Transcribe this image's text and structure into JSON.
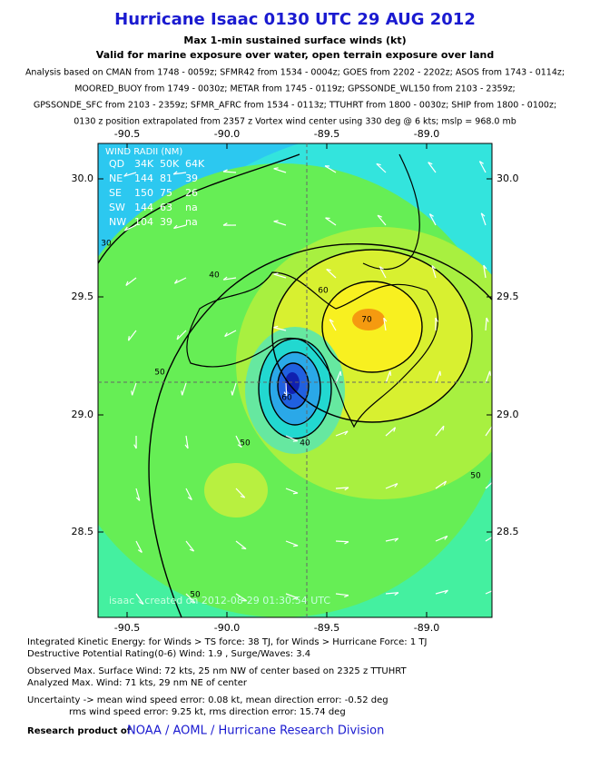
{
  "header": {
    "title": "Hurricane Isaac 0130 UTC 29 AUG 2012",
    "subtitle": "Max 1-min sustained surface winds (kt)",
    "validity": "Valid for marine exposure over water, open terrain exposure over land",
    "analysis": [
      "Analysis based on CMAN from 1748 - 0059z; SFMR42 from 1534 - 0004z; GOES from 2202 - 2202z; ASOS from 1743 - 0114z;",
      "MOORED_BUOY from 1749 - 0030z; METAR from 1745 - 0119z; GPSSONDE_WL150 from 2103 - 2359z;",
      "GPSSONDE_SFC from 2103 - 2359z; SFMR_AFRC from 1534 - 0113z; TTUHRT from 1800 - 0030z; SHIP from 1800 - 0100z;",
      "0130 z position extrapolated from 2357 z Vortex wind center using 330 deg @ 6 kts; mslp = 968.0 mb"
    ]
  },
  "map": {
    "lon_labels": [
      "-90.5",
      "-90.0",
      "-89.5",
      "-89.0"
    ],
    "lat_labels": [
      "30.0",
      "29.5",
      "29.0",
      "28.5"
    ],
    "wind_radii": {
      "title": "WIND RADII (NM)",
      "rows": [
        [
          "QD",
          "34K",
          "50K",
          "64K"
        ],
        [
          "NE",
          "144",
          "81",
          "39"
        ],
        [
          "SE",
          "150",
          "75",
          "26"
        ],
        [
          "SW",
          "144",
          "63",
          "na"
        ],
        [
          "NW",
          "104",
          "39",
          "na"
        ]
      ]
    },
    "contour_labels": [
      "30",
      "40",
      "50",
      "60",
      "70",
      "50",
      "40",
      "50",
      "50",
      "60"
    ],
    "watermark": "isaac - created on 2012-08-29 01:30:54 UTC"
  },
  "footer": {
    "lines": [
      "Integrated Kinetic Energy: for Winds > TS force: 38 TJ, for Winds > Hurricane Force: 1 TJ",
      "Destructive Potential Rating(0-6)   Wind: 1.9 , Surge/Waves: 3.4",
      "Observed Max. Surface Wind: 72 kts, 25 nm NW of center based on 2325 z TTUHRT",
      "Analyzed Max. Wind: 71 kts, 29 nm  NE of center",
      "Uncertainty -> mean wind speed error: 0.08 kt, mean direction error:  -0.52 deg",
      "rms wind speed error: 9.25 kt, rms direction error: 15.74 deg"
    ],
    "credit_prefix": "Research product of",
    "credit": "NOAA / AOML / Hurricane Research Division"
  }
}
